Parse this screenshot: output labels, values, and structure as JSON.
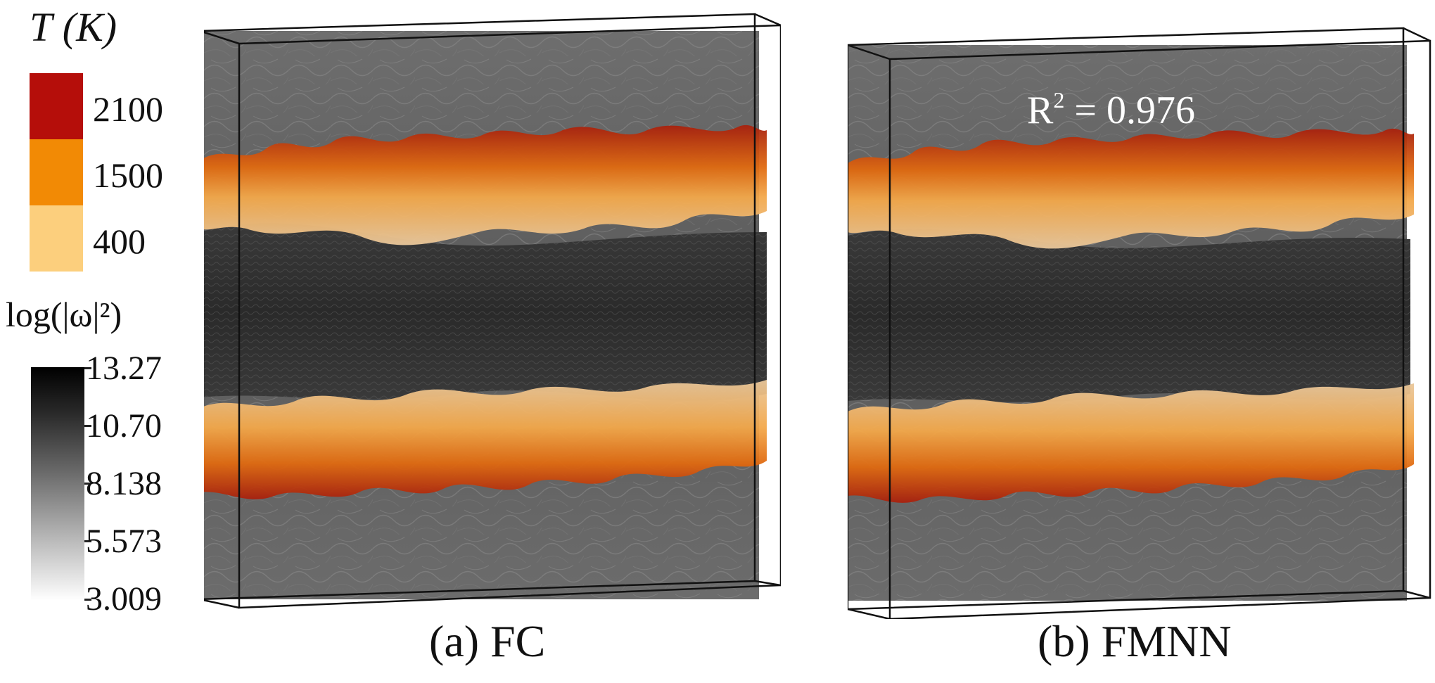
{
  "legend": {
    "temperature": {
      "title_var": "T",
      "title_unit": "(K)",
      "entries": [
        {
          "label": "2100",
          "color": "#b50e0a"
        },
        {
          "label": "1500",
          "color": "#f28a05"
        },
        {
          "label": "400",
          "color": "#fccf7d"
        }
      ]
    },
    "vorticity": {
      "title": "log(|ω|²)",
      "ticks": [
        "13.27",
        "10.70",
        "8.138",
        "5.573",
        "3.009"
      ]
    }
  },
  "panels": [
    {
      "caption": "(a) FC",
      "annotation": ""
    },
    {
      "caption": "(b) FMNN",
      "annotation_base": "R",
      "annotation_sup": "2",
      "annotation_value": " = 0.976"
    }
  ]
}
